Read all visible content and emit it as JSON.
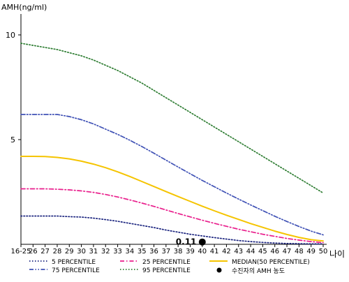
{
  "chart_data": {
    "type": "line",
    "title": "",
    "ylabel": "AMH(ng/ml)",
    "xlabel": "나이",
    "categories": [
      "16-25",
      "26",
      "27",
      "28",
      "29",
      "30",
      "31",
      "32",
      "33",
      "34",
      "35",
      "36",
      "37",
      "38",
      "39",
      "40",
      "41",
      "42",
      "43",
      "44",
      "45",
      "46",
      "47",
      "48",
      "49",
      "50"
    ],
    "ylim": [
      0,
      11
    ],
    "yticks": [
      5,
      10
    ],
    "ytick_labels": [
      "5",
      "10"
    ],
    "grid": false,
    "legend_position": "bottom",
    "series": [
      {
        "name": "5 PERCENTILE",
        "color": "#1a237e",
        "style": "dotted",
        "values": [
          1.35,
          1.35,
          1.35,
          1.35,
          1.32,
          1.3,
          1.25,
          1.18,
          1.1,
          1.0,
          0.9,
          0.8,
          0.68,
          0.58,
          0.48,
          0.4,
          0.32,
          0.25,
          0.18,
          0.13,
          0.09,
          0.06,
          0.04,
          0.03,
          0.02,
          0.02
        ]
      },
      {
        "name": "25 PERCENTILE",
        "color": "#e91e8c",
        "style": "dashdot",
        "values": [
          2.65,
          2.65,
          2.65,
          2.63,
          2.6,
          2.55,
          2.48,
          2.38,
          2.26,
          2.12,
          1.97,
          1.81,
          1.64,
          1.47,
          1.31,
          1.15,
          1.0,
          0.86,
          0.72,
          0.6,
          0.48,
          0.38,
          0.28,
          0.2,
          0.13,
          0.08
        ]
      },
      {
        "name": "MEDIAN(50 PERCENTILE)",
        "color": "#f5c400",
        "style": "solid",
        "values": [
          4.2,
          4.2,
          4.19,
          4.15,
          4.08,
          3.97,
          3.83,
          3.66,
          3.46,
          3.24,
          3.0,
          2.76,
          2.52,
          2.28,
          2.05,
          1.82,
          1.6,
          1.39,
          1.19,
          0.99,
          0.81,
          0.63,
          0.47,
          0.33,
          0.22,
          0.16
        ]
      },
      {
        "name": "75 PERCENTILE",
        "color": "#3f51b5",
        "style": "dashdotdot",
        "values": [
          6.2,
          6.2,
          6.2,
          6.2,
          6.1,
          5.95,
          5.75,
          5.5,
          5.25,
          4.97,
          4.67,
          4.35,
          4.02,
          3.69,
          3.37,
          3.05,
          2.75,
          2.45,
          2.16,
          1.88,
          1.61,
          1.34,
          1.09,
          0.85,
          0.63,
          0.45
        ]
      },
      {
        "name": "95 PERCENTILE",
        "color": "#2e7d32",
        "style": "dotted",
        "values": [
          9.6,
          9.5,
          9.4,
          9.3,
          9.15,
          9.0,
          8.8,
          8.55,
          8.3,
          8.0,
          7.7,
          7.35,
          7.0,
          6.65,
          6.3,
          5.95,
          5.6,
          5.25,
          4.9,
          4.55,
          4.2,
          3.85,
          3.5,
          3.15,
          2.8,
          2.45
        ]
      }
    ],
    "marker": {
      "name": "수진자의 AMH 농도",
      "x": "40",
      "y": 0.11,
      "label": "0.11",
      "color": "#000000"
    }
  }
}
